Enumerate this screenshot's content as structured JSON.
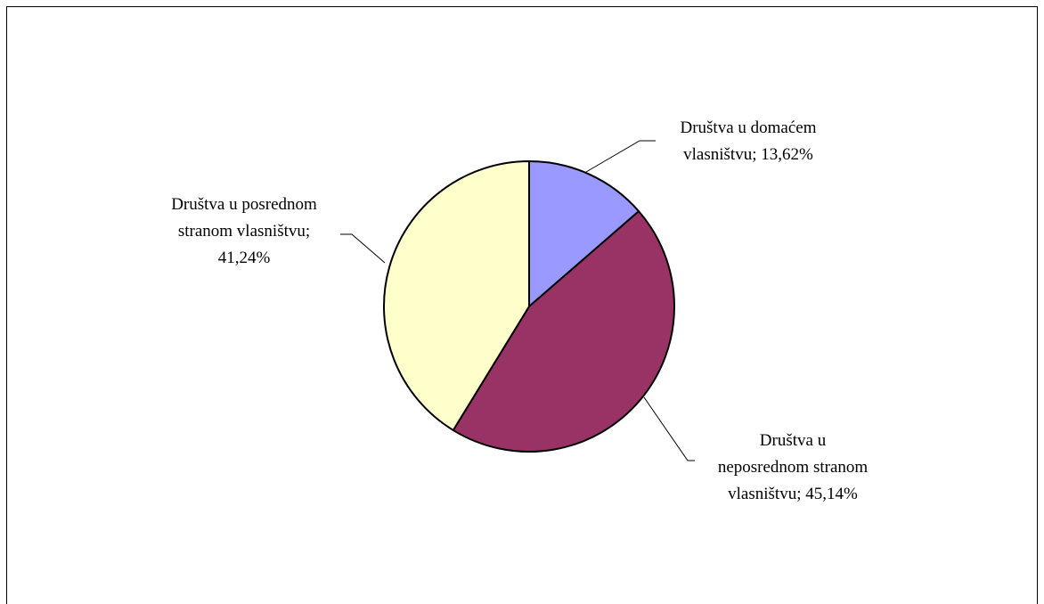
{
  "chart_data": {
    "type": "pie",
    "slices": [
      {
        "label_lines": [
          "Društva u domaćem",
          "vlasništvu; 13,62%"
        ],
        "value": 13.62,
        "color": "#9999ff"
      },
      {
        "label_lines": [
          "Društva u",
          "neposrednom stranom",
          "vlasništvu; 45,14%"
        ],
        "value": 45.14,
        "color": "#993366"
      },
      {
        "label_lines": [
          "Društva u posrednom",
          "stranom vlasništvu;",
          "41,24%"
        ],
        "value": 41.24,
        "color": "#ffffcc"
      }
    ],
    "start_angle_deg": 0,
    "direction": "clockwise",
    "border_color": "#000000",
    "grid": false,
    "legend": "none"
  }
}
